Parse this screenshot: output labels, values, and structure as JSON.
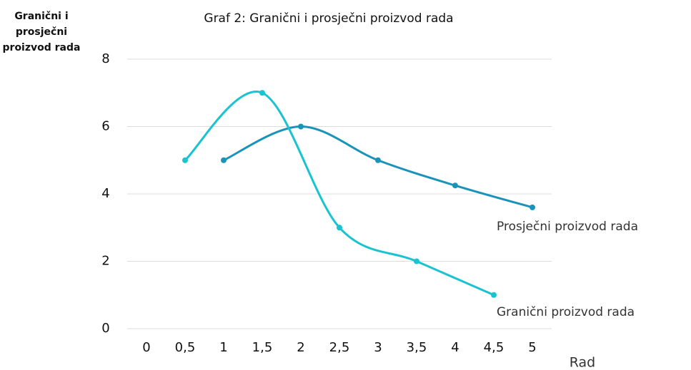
{
  "chart_data": {
    "type": "line",
    "title": "Graf 2: Granični i prosječni  proizvod rada",
    "y_label": "Granični i prosječni proizvod rada",
    "x_label": "Rad",
    "xlim": [
      -0.25,
      5.25
    ],
    "xticks": [
      0,
      {
        "value": 0.5,
        "label": "0,5"
      },
      1,
      {
        "value": 1.5,
        "label": "1,5"
      },
      2,
      {
        "value": 2.5,
        "label": "2,5"
      },
      3,
      {
        "value": 3.5,
        "label": "3,5"
      },
      4,
      {
        "value": 4.5,
        "label": "4,5"
      },
      5
    ],
    "ylim": [
      0,
      8
    ],
    "yticks": [
      0,
      2,
      4,
      6,
      8
    ],
    "grid": true,
    "series": [
      {
        "name": "Prosječni proizvod rada",
        "color": "#1a93b8",
        "x": [
          1,
          2,
          3,
          4,
          5
        ],
        "values": [
          5,
          6,
          5,
          4.25,
          3.6
        ]
      },
      {
        "name": "Granični proizvod rada",
        "color": "#19c3cf",
        "x": [
          0.5,
          1.5,
          2.5,
          3.5,
          4.5
        ],
        "values": [
          5,
          7,
          3,
          2,
          1
        ]
      }
    ]
  }
}
